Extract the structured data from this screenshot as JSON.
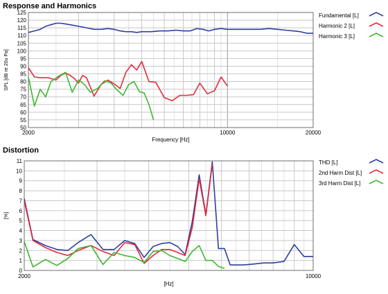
{
  "chart_data": [
    {
      "type": "line",
      "title": "Response and Harmonics",
      "xlabel": "Frequency [Hz]",
      "ylabel": "SPL [dB re 20u Pa]",
      "xscale": "log",
      "xlim": [
        2000,
        20000
      ],
      "ylim": [
        50,
        125
      ],
      "xticks": [
        2000,
        10000,
        20000
      ],
      "xtick_labels": [
        "2000",
        "10000",
        "20000"
      ],
      "yticks": [
        50,
        55,
        60,
        65,
        70,
        75,
        80,
        85,
        90,
        95,
        100,
        105,
        110,
        115,
        120,
        125
      ],
      "grid": true,
      "legend_position": "right",
      "series": [
        {
          "name": "Fundamental [L]",
          "color": "#2a3f9e",
          "x": [
            2000,
            2100,
            2200,
            2300,
            2400,
            2500,
            2600,
            2700,
            2800,
            2900,
            3000,
            3200,
            3400,
            3600,
            3800,
            4000,
            4200,
            4400,
            4600,
            4800,
            5000,
            5400,
            5800,
            6200,
            6600,
            7000,
            7400,
            7800,
            8200,
            8600,
            9000,
            9500,
            10000,
            11000,
            12000,
            13000,
            14000,
            15000,
            16000,
            17000,
            18000,
            19000,
            20000
          ],
          "y": [
            112,
            113,
            114,
            116,
            117,
            118,
            118,
            117.5,
            117,
            116.5,
            116,
            115,
            114,
            114,
            114.5,
            114,
            113,
            112.5,
            112.5,
            112,
            112.5,
            112.5,
            113,
            113,
            113.5,
            113,
            113,
            114.5,
            114,
            113,
            114,
            114.5,
            114,
            114,
            114,
            114,
            114.5,
            114,
            113.5,
            113,
            112.5,
            111.5,
            111.5
          ]
        },
        {
          "name": "Harmonic 2 [L]",
          "color": "#e8283c",
          "x": [
            2000,
            2100,
            2200,
            2350,
            2500,
            2600,
            2700,
            2800,
            2900,
            3000,
            3100,
            3200,
            3400,
            3600,
            3800,
            4000,
            4200,
            4400,
            4600,
            4800,
            5000,
            5300,
            5600,
            6000,
            6400,
            6800,
            7200,
            7600,
            8000,
            8500,
            9000,
            9500,
            10000
          ],
          "y": [
            89,
            83,
            82.5,
            82.5,
            81,
            84,
            85.5,
            84,
            82,
            79,
            84,
            82.5,
            70.5,
            78,
            81,
            78.5,
            75.5,
            86,
            91,
            87.5,
            93,
            80,
            79.5,
            69.5,
            67.5,
            71,
            71,
            71.5,
            79,
            72,
            74,
            83,
            77
          ]
        },
        {
          "name": "Harmonic 3 [L]",
          "color": "#3cb82e",
          "x": [
            2000,
            2100,
            2200,
            2300,
            2400,
            2550,
            2700,
            2850,
            3000,
            3150,
            3300,
            3500,
            3700,
            3900,
            4100,
            4300,
            4500,
            4700,
            4900,
            5100,
            5300,
            5500
          ],
          "y": [
            83,
            64,
            75,
            70,
            80,
            83.5,
            86,
            73,
            81,
            78,
            73,
            75.5,
            80.5,
            79,
            74.5,
            71,
            78,
            80,
            73.5,
            72.5,
            65,
            55
          ]
        }
      ]
    },
    {
      "type": "line",
      "title": "Distortion",
      "xlabel": "[Hz]",
      "ylabel": "[%]",
      "xscale": "log",
      "xlim": [
        2000,
        10000
      ],
      "ylim": [
        0,
        11
      ],
      "xticks": [
        2000,
        10000
      ],
      "xtick_labels": [
        "2000",
        "10000"
      ],
      "yticks": [
        0,
        1,
        2,
        3,
        4,
        5,
        6,
        7,
        8,
        9,
        10,
        11
      ],
      "grid": true,
      "legend_position": "right",
      "series": [
        {
          "name": "THD [L]",
          "color": "#2a3f9e",
          "x": [
            2000,
            2100,
            2250,
            2400,
            2550,
            2700,
            2900,
            3100,
            3300,
            3500,
            3700,
            3900,
            4100,
            4300,
            4500,
            4700,
            4900,
            5100,
            5300,
            5500,
            5700,
            5900,
            6100,
            6300,
            6500,
            6800,
            7200,
            7600,
            8000,
            8500,
            9000,
            9500,
            10000
          ],
          "y": [
            7.2,
            3.1,
            2.5,
            2.1,
            2.0,
            2.8,
            3.6,
            2.1,
            2.1,
            3.0,
            2.7,
            1.3,
            2.4,
            2.7,
            2.8,
            2.4,
            1.6,
            4.9,
            9.6,
            5.6,
            10.9,
            2.2,
            2.2,
            0.55,
            0.55,
            0.55,
            0.65,
            0.75,
            0.75,
            0.9,
            2.6,
            1.4,
            1.4
          ]
        },
        {
          "name": "2nd Harm Dist [L]",
          "color": "#e8283c",
          "x": [
            2000,
            2100,
            2250,
            2400,
            2550,
            2700,
            2900,
            3100,
            3300,
            3500,
            3700,
            3900,
            4100,
            4300,
            4500,
            4700,
            4900,
            5100,
            5300,
            5500,
            5700
          ],
          "y": [
            7.0,
            3.0,
            2.3,
            1.8,
            1.5,
            2.0,
            2.5,
            1.9,
            1.5,
            2.8,
            2.6,
            0.7,
            1.5,
            2.1,
            2.1,
            1.8,
            1.5,
            4.3,
            9.2,
            5.5,
            10.7
          ]
        },
        {
          "name": "3rd Harm Dist [L]",
          "color": "#3cb82e",
          "x": [
            2000,
            2100,
            2250,
            2400,
            2550,
            2700,
            2900,
            3100,
            3300,
            3500,
            3700,
            3900,
            4100,
            4300,
            4500,
            4700,
            4900,
            5100,
            5300,
            5500,
            5700,
            5900,
            6100
          ],
          "y": [
            2.9,
            0.35,
            1.1,
            0.5,
            1.2,
            2.2,
            2.5,
            0.6,
            1.8,
            1.5,
            1.3,
            0.8,
            1.9,
            2.0,
            1.5,
            1.2,
            0.9,
            1.9,
            2.5,
            1.0,
            1.0,
            0.4,
            0.2
          ]
        }
      ]
    }
  ]
}
